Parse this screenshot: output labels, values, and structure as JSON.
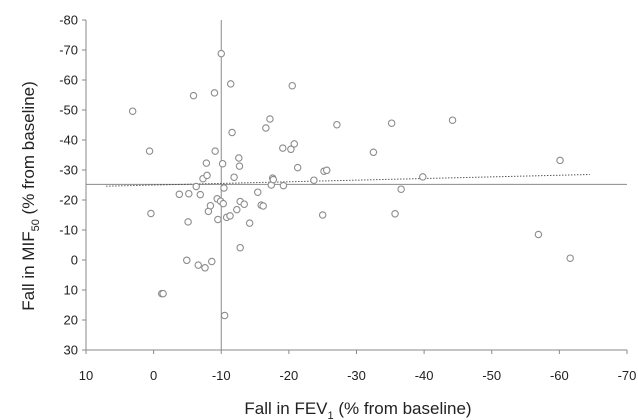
{
  "chart_data": {
    "type": "scatter",
    "title": "",
    "x_label": {
      "before": "Fall in FEV",
      "sub": "1",
      "after": " (% from baseline)"
    },
    "y_label": {
      "before": "Fall in MIF",
      "sub": "50",
      "after": " (% from baseline)"
    },
    "x_range": [
      10,
      -70
    ],
    "y_range": [
      30,
      -80
    ],
    "x_ticks": [
      "10",
      "0",
      "-10",
      "-20",
      "-30",
      "-40",
      "-50",
      "-60",
      "-70"
    ],
    "y_ticks": [
      "-80",
      "-70",
      "-60",
      "-50",
      "-40",
      "-30",
      "-20",
      "-10",
      "0",
      "10",
      "20",
      "30"
    ],
    "x_tick_values": [
      10,
      0,
      -10,
      -20,
      -30,
      -40,
      -50,
      -60,
      -70
    ],
    "y_tick_values": [
      -80,
      -70,
      -60,
      -50,
      -40,
      -30,
      -20,
      -10,
      0,
      10,
      20,
      30
    ],
    "reference_lines": {
      "x": -10,
      "y": -25.2
    },
    "trendline": {
      "x": [
        7,
        -64.5
      ],
      "y": [
        -24.6,
        -28.5
      ],
      "style": "dotted"
    },
    "marker": {
      "shape": "open-circle",
      "color": "#8c8c8c"
    },
    "grid": false,
    "legend": "none",
    "points": [
      {
        "x": 3.1,
        "y": -49.6
      },
      {
        "x": 0.6,
        "y": -36.3
      },
      {
        "x": 0.4,
        "y": -15.5
      },
      {
        "x": -1.2,
        "y": 11.2
      },
      {
        "x": -1.4,
        "y": 11.2
      },
      {
        "x": -3.8,
        "y": -21.9
      },
      {
        "x": -4.9,
        "y": 0.1
      },
      {
        "x": -5.1,
        "y": -12.7
      },
      {
        "x": -5.2,
        "y": -22.1
      },
      {
        "x": -5.9,
        "y": -54.8
      },
      {
        "x": -6.3,
        "y": -24.5
      },
      {
        "x": -6.6,
        "y": 1.7
      },
      {
        "x": -6.9,
        "y": -21.8
      },
      {
        "x": -7.3,
        "y": -27.1
      },
      {
        "x": -7.6,
        "y": 2.6
      },
      {
        "x": -7.8,
        "y": -32.3
      },
      {
        "x": -7.9,
        "y": -28.2
      },
      {
        "x": -8.1,
        "y": -16.2
      },
      {
        "x": -8.4,
        "y": -18.1
      },
      {
        "x": -8.6,
        "y": 0.5
      },
      {
        "x": -9.0,
        "y": -55.7
      },
      {
        "x": -9.1,
        "y": -36.3
      },
      {
        "x": -9.4,
        "y": -20.4
      },
      {
        "x": -9.5,
        "y": -13.5
      },
      {
        "x": -9.9,
        "y": -19.6
      },
      {
        "x": -10.0,
        "y": -68.8
      },
      {
        "x": -10.2,
        "y": -32.1
      },
      {
        "x": -10.3,
        "y": -18.8
      },
      {
        "x": -10.4,
        "y": -24.0
      },
      {
        "x": -10.5,
        "y": 18.5
      },
      {
        "x": -10.8,
        "y": -14.2
      },
      {
        "x": -11.3,
        "y": -14.7
      },
      {
        "x": -11.4,
        "y": -58.7
      },
      {
        "x": -11.6,
        "y": -42.5
      },
      {
        "x": -11.9,
        "y": -27.6
      },
      {
        "x": -12.3,
        "y": -16.8
      },
      {
        "x": -12.6,
        "y": -34.0
      },
      {
        "x": -12.7,
        "y": -31.3
      },
      {
        "x": -12.8,
        "y": -19.5
      },
      {
        "x": -12.8,
        "y": -4.1
      },
      {
        "x": -13.4,
        "y": -18.6
      },
      {
        "x": -14.2,
        "y": -12.3
      },
      {
        "x": -15.4,
        "y": -22.6
      },
      {
        "x": -15.9,
        "y": -18.3
      },
      {
        "x": -16.2,
        "y": -18.0
      },
      {
        "x": -16.6,
        "y": -44.0
      },
      {
        "x": -17.2,
        "y": -47.0
      },
      {
        "x": -17.4,
        "y": -25.0
      },
      {
        "x": -17.6,
        "y": -27.3
      },
      {
        "x": -17.7,
        "y": -26.8
      },
      {
        "x": -19.1,
        "y": -37.3
      },
      {
        "x": -19.2,
        "y": -24.8
      },
      {
        "x": -20.3,
        "y": -36.9
      },
      {
        "x": -20.5,
        "y": -58.1
      },
      {
        "x": -20.8,
        "y": -38.7
      },
      {
        "x": -21.3,
        "y": -30.8
      },
      {
        "x": -23.7,
        "y": -26.6
      },
      {
        "x": -25.0,
        "y": -15.0
      },
      {
        "x": -25.2,
        "y": -29.6
      },
      {
        "x": -25.6,
        "y": -29.9
      },
      {
        "x": -27.1,
        "y": -45.1
      },
      {
        "x": -32.5,
        "y": -35.9
      },
      {
        "x": -35.2,
        "y": -45.6
      },
      {
        "x": -35.7,
        "y": -15.4
      },
      {
        "x": -36.6,
        "y": -23.6
      },
      {
        "x": -39.8,
        "y": -27.7
      },
      {
        "x": -44.2,
        "y": -46.6
      },
      {
        "x": -56.9,
        "y": -8.5
      },
      {
        "x": -60.1,
        "y": -33.2
      },
      {
        "x": -61.6,
        "y": -0.6
      }
    ]
  }
}
